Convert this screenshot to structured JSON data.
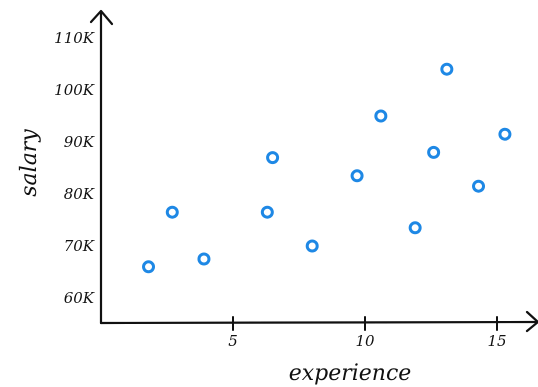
{
  "chart_data": {
    "type": "scatter",
    "title": "",
    "xlabel": "experience",
    "ylabel": "salary",
    "xlim": [
      0,
      16
    ],
    "ylim": [
      55,
      115
    ],
    "xticks": [
      5,
      10,
      15
    ],
    "xtick_labels": [
      "5",
      "10",
      "15"
    ],
    "yticks": [
      60,
      70,
      80,
      90,
      100,
      110
    ],
    "ytick_labels": [
      "60K",
      "70K",
      "80K",
      "90K",
      "100K",
      "110K"
    ],
    "grid": false,
    "series": [
      {
        "color": "#1e88e5",
        "points": [
          {
            "x": 1.8,
            "y": 66
          },
          {
            "x": 2.7,
            "y": 76.5
          },
          {
            "x": 3.9,
            "y": 67.5
          },
          {
            "x": 6.3,
            "y": 76.5
          },
          {
            "x": 6.5,
            "y": 87
          },
          {
            "x": 8.0,
            "y": 70
          },
          {
            "x": 9.7,
            "y": 83.5
          },
          {
            "x": 10.6,
            "y": 95
          },
          {
            "x": 11.9,
            "y": 73.5
          },
          {
            "x": 12.6,
            "y": 88
          },
          {
            "x": 13.1,
            "y": 104
          },
          {
            "x": 14.3,
            "y": 81.5
          },
          {
            "x": 15.3,
            "y": 91.5
          }
        ]
      }
    ]
  }
}
